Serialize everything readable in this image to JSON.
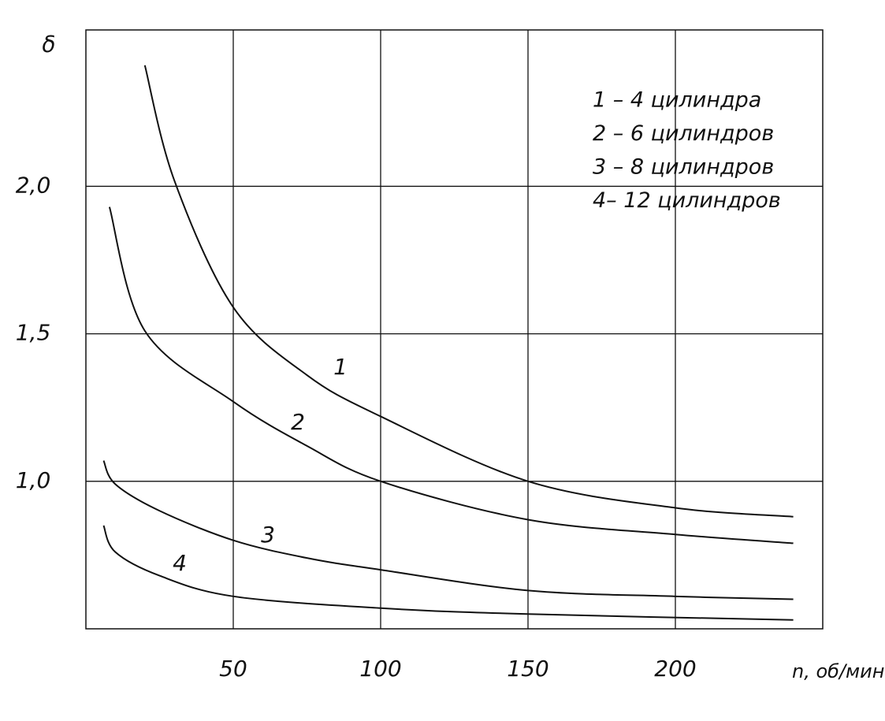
{
  "chart_data": {
    "type": "line",
    "y_label": "δ",
    "x_label": "n, об/мин",
    "xlim": [
      0,
      250
    ],
    "ylim": [
      0.5,
      2.53
    ],
    "xticks": [
      50,
      100,
      150,
      200
    ],
    "yticks": [
      {
        "value": 1.0,
        "label": "1,0"
      },
      {
        "value": 1.5,
        "label": "1,5"
      },
      {
        "value": 2.0,
        "label": "2,0"
      }
    ],
    "grid": true,
    "legend": "upper right",
    "series": [
      {
        "name": "1 – 4 цилиндра",
        "label": "1",
        "color": "#111111",
        "x": [
          20,
          30,
          50,
          75,
          100,
          150,
          200,
          240
        ],
        "values": [
          2.41,
          2.02,
          1.59,
          1.36,
          1.22,
          1.0,
          0.91,
          0.88
        ]
      },
      {
        "name": "2 – 6 цилиндров",
        "label": "2",
        "color": "#111111",
        "x": [
          8,
          20,
          50,
          75,
          100,
          150,
          200,
          240
        ],
        "values": [
          1.93,
          1.51,
          1.27,
          1.12,
          1.0,
          0.87,
          0.82,
          0.79
        ]
      },
      {
        "name": "3 – 8 цилиндров",
        "label": "3",
        "color": "#111111",
        "x": [
          6,
          10,
          25,
          50,
          75,
          100,
          150,
          200,
          240
        ],
        "values": [
          1.07,
          0.99,
          0.9,
          0.8,
          0.74,
          0.7,
          0.63,
          0.61,
          0.6
        ]
      },
      {
        "name": "4– 12 цилиндров",
        "label": "4",
        "color": "#111111",
        "x": [
          6,
          10,
          25,
          50,
          100,
          150,
          240
        ],
        "values": [
          0.85,
          0.76,
          0.68,
          0.61,
          0.57,
          0.55,
          0.53
        ]
      }
    ]
  }
}
